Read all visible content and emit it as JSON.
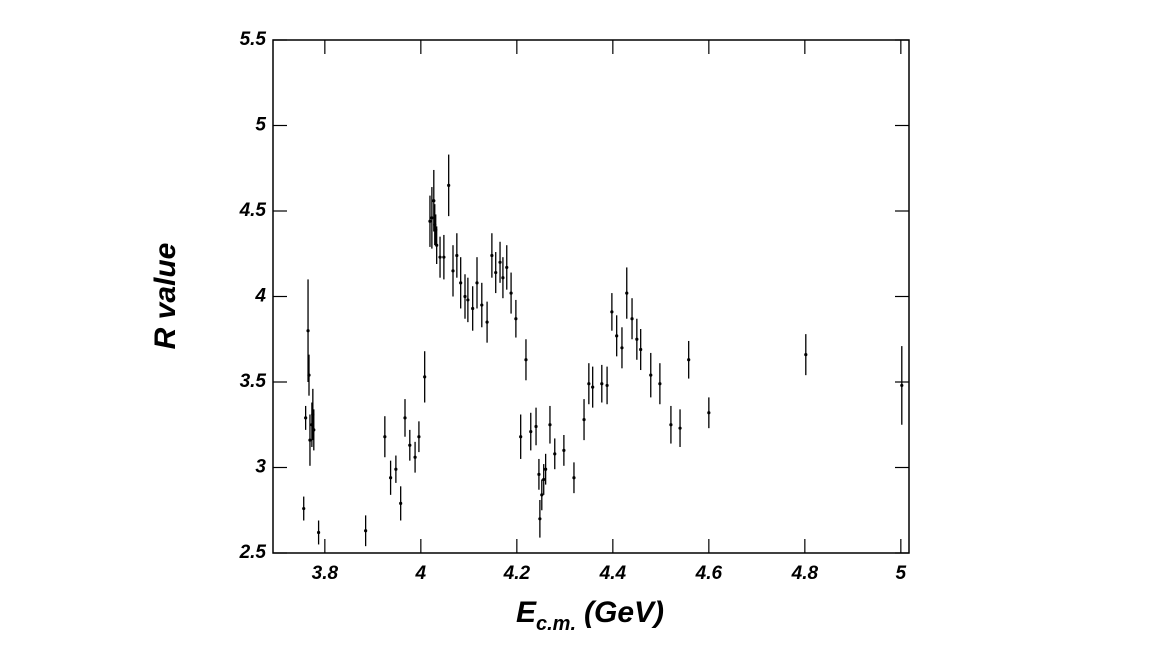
{
  "chart_data": {
    "type": "scatter",
    "x_label": {
      "main": "E",
      "subscript": "c.m.",
      "unit": "(GeV)"
    },
    "y_label": "R value",
    "color": "#000000",
    "xlim": [
      3.692,
      5.017
    ],
    "ylim": [
      2.5,
      5.5
    ],
    "xticks": [
      3.8,
      4,
      4.2,
      4.4,
      4.6,
      4.8,
      5
    ],
    "yticks": [
      2.5,
      3,
      3.5,
      4,
      4.5,
      5,
      5.5
    ],
    "grid": false,
    "x": [
      3.756,
      3.76,
      3.765,
      3.767,
      3.769,
      3.773,
      3.775,
      3.777,
      3.787,
      3.885,
      3.925,
      3.937,
      3.948,
      3.958,
      3.967,
      3.977,
      3.988,
      3.996,
      4.008,
      4.019,
      4.023,
      4.027,
      4.029,
      4.031,
      4.033,
      4.04,
      4.048,
      4.058,
      4.067,
      4.075,
      4.083,
      4.092,
      4.098,
      4.108,
      4.117,
      4.127,
      4.138,
      4.148,
      4.156,
      4.165,
      4.171,
      4.179,
      4.188,
      4.198,
      4.208,
      4.219,
      4.229,
      4.24,
      4.246,
      4.248,
      4.252,
      4.256,
      4.26,
      4.269,
      4.279,
      4.298,
      4.319,
      4.34,
      4.35,
      4.358,
      4.377,
      4.388,
      4.398,
      4.408,
      4.419,
      4.429,
      4.44,
      4.45,
      4.458,
      4.479,
      4.498,
      4.521,
      4.54,
      4.558,
      4.6,
      4.802,
      5.002
    ],
    "values": [
      2.76,
      3.29,
      3.8,
      3.54,
      3.16,
      3.25,
      3.31,
      3.22,
      2.62,
      2.63,
      3.18,
      2.94,
      2.99,
      2.79,
      3.29,
      3.13,
      3.06,
      3.18,
      3.53,
      4.44,
      4.46,
      4.56,
      4.42,
      4.39,
      4.3,
      4.23,
      4.23,
      4.65,
      4.15,
      4.24,
      4.08,
      4.0,
      3.98,
      3.93,
      4.08,
      3.95,
      3.85,
      4.24,
      4.14,
      4.2,
      4.11,
      4.17,
      4.02,
      3.87,
      3.18,
      3.63,
      3.21,
      3.24,
      2.96,
      2.7,
      2.84,
      2.93,
      2.99,
      3.25,
      3.08,
      3.1,
      2.94,
      3.28,
      3.49,
      3.47,
      3.49,
      3.48,
      3.91,
      3.77,
      3.7,
      4.02,
      3.87,
      3.75,
      3.69,
      3.54,
      3.49,
      3.25,
      3.23,
      3.63,
      3.32,
      3.66,
      3.48
    ],
    "errors": [
      0.07,
      0.07,
      0.3,
      0.12,
      0.15,
      0.13,
      0.15,
      0.12,
      0.07,
      0.09,
      0.12,
      0.1,
      0.08,
      0.1,
      0.11,
      0.09,
      0.09,
      0.09,
      0.15,
      0.15,
      0.18,
      0.18,
      0.12,
      0.09,
      0.11,
      0.12,
      0.13,
      0.18,
      0.15,
      0.13,
      0.15,
      0.13,
      0.13,
      0.13,
      0.15,
      0.13,
      0.12,
      0.13,
      0.12,
      0.12,
      0.12,
      0.13,
      0.12,
      0.11,
      0.13,
      0.12,
      0.11,
      0.11,
      0.09,
      0.11,
      0.09,
      0.09,
      0.09,
      0.11,
      0.09,
      0.09,
      0.09,
      0.12,
      0.12,
      0.12,
      0.11,
      0.11,
      0.11,
      0.12,
      0.12,
      0.15,
      0.12,
      0.12,
      0.12,
      0.13,
      0.12,
      0.11,
      0.11,
      0.11,
      0.09,
      0.12,
      0.23
    ]
  }
}
